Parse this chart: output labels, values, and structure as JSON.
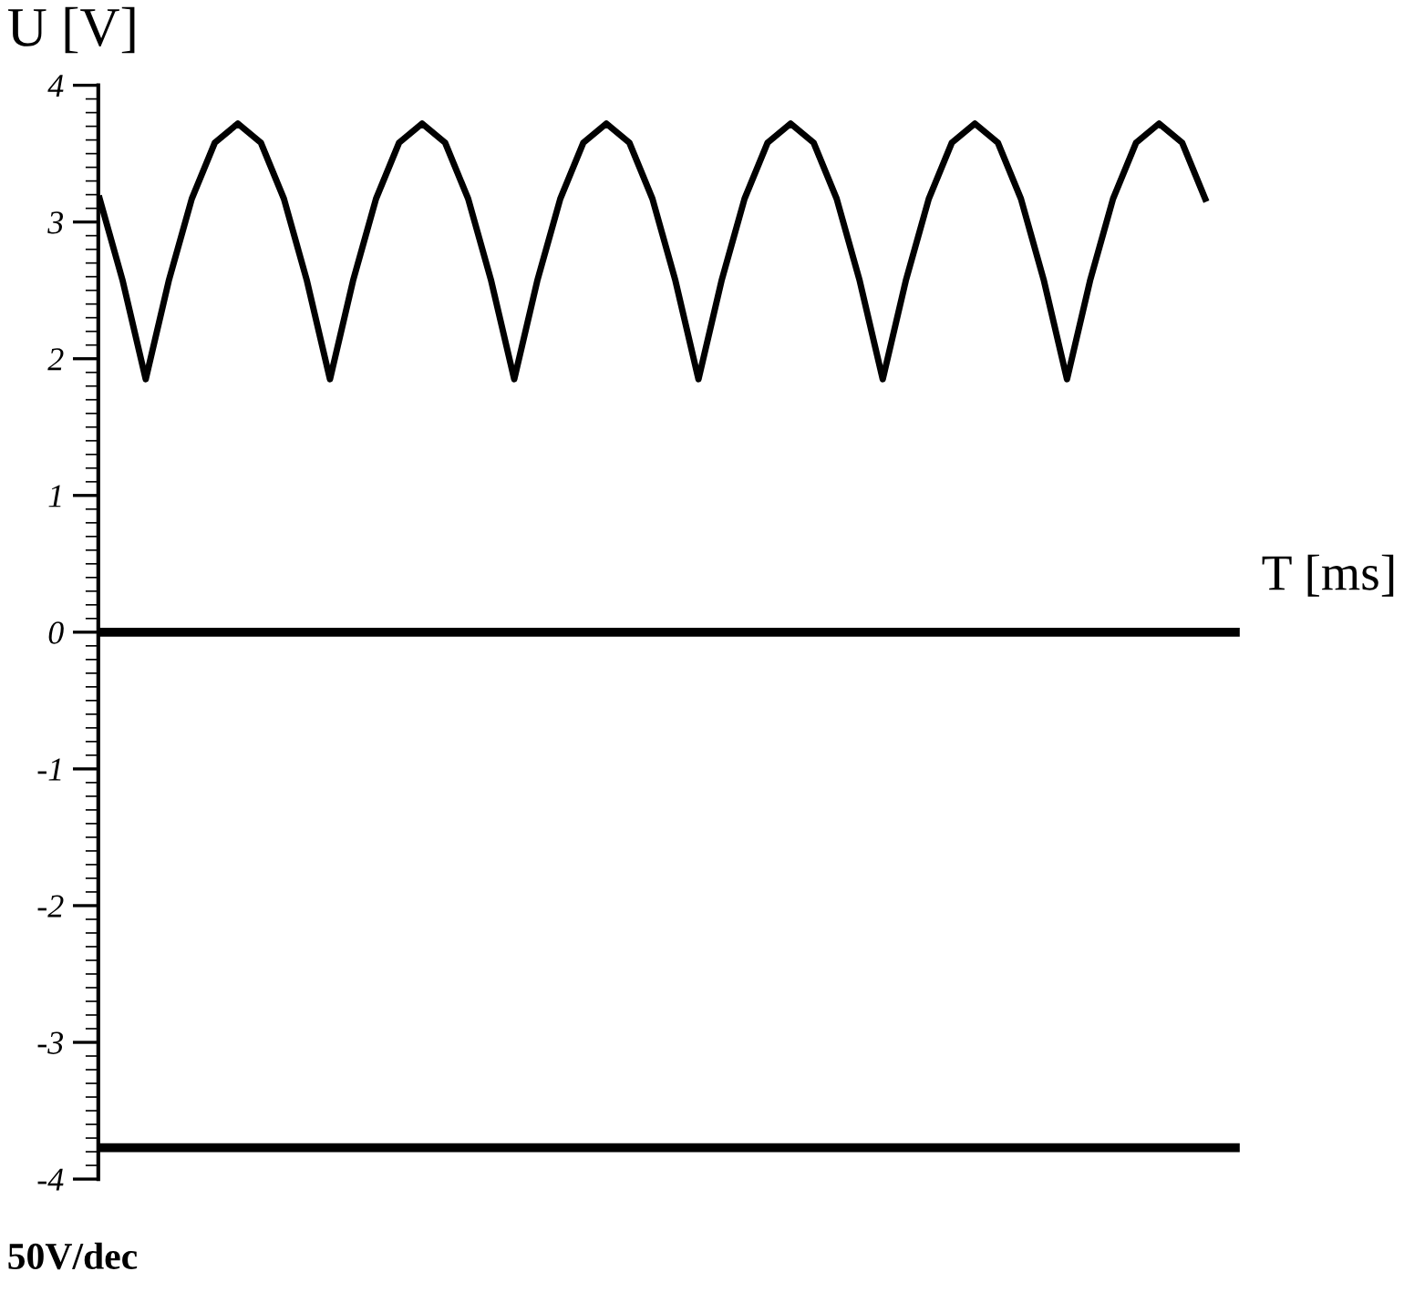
{
  "chart_data": {
    "type": "line",
    "xlabel": "T [ms]",
    "ylabel": "U [V]",
    "annotations": [
      "50V/dec"
    ],
    "categories": [
      null,
      null,
      null,
      null,
      null,
      null,
      null,
      null,
      null,
      null,
      null,
      null,
      null,
      null,
      null,
      null,
      null,
      null,
      null,
      null,
      null,
      null,
      null,
      null,
      null,
      null,
      null,
      null,
      null,
      null,
      null,
      null,
      null,
      null,
      null,
      null,
      null,
      null,
      null,
      null,
      null,
      null,
      null,
      null,
      null,
      null,
      null,
      null,
      null
    ],
    "series": [
      {
        "color": "#000000",
        "values": [
          3.17,
          2.57,
          1.85,
          2.57,
          3.17,
          3.58,
          3.72,
          3.58,
          3.17,
          2.57,
          1.85,
          2.57,
          3.17,
          3.58,
          3.72,
          3.58,
          3.17,
          2.57,
          1.85,
          2.57,
          3.17,
          3.58,
          3.72,
          3.58,
          3.17,
          2.57,
          1.85,
          2.57,
          3.17,
          3.58,
          3.72,
          3.58,
          3.17,
          2.57,
          1.85,
          2.57,
          3.17,
          3.58,
          3.72,
          3.58,
          3.17,
          2.57,
          1.85,
          2.57,
          3.17,
          3.58,
          3.72,
          3.58,
          3.17
        ]
      }
    ],
    "ref_lines": [
      {
        "axis": "y",
        "value": 0,
        "color": "#000000"
      },
      {
        "axis": "y",
        "value": -3.77,
        "color": "#000000"
      }
    ],
    "ylim": [
      -4,
      4
    ],
    "yticks": [
      -4,
      -3,
      -2,
      -1,
      0,
      1,
      2,
      3,
      4
    ],
    "tick_labels": "y",
    "grid": false,
    "legend": false
  }
}
